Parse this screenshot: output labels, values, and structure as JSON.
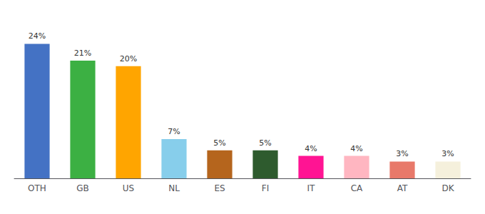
{
  "chart_data": {
    "type": "bar",
    "categories": [
      "OTH",
      "GB",
      "US",
      "NL",
      "ES",
      "FI",
      "IT",
      "CA",
      "AT",
      "DK"
    ],
    "values": [
      24,
      21,
      20,
      7,
      5,
      5,
      4,
      4,
      3,
      3
    ],
    "value_labels": [
      "24%",
      "21%",
      "20%",
      "7%",
      "5%",
      "5%",
      "4%",
      "4%",
      "3%",
      "3%"
    ],
    "colors": [
      "#4472C4",
      "#3CB043",
      "#FFA500",
      "#87CEEB",
      "#B5651D",
      "#2E5B2E",
      "#FF1493",
      "#FFB6C1",
      "#E8796A",
      "#F5F0DC"
    ],
    "ylim": [
      0,
      28
    ],
    "data_labels": true,
    "tick_labels": "x",
    "grid": false
  }
}
